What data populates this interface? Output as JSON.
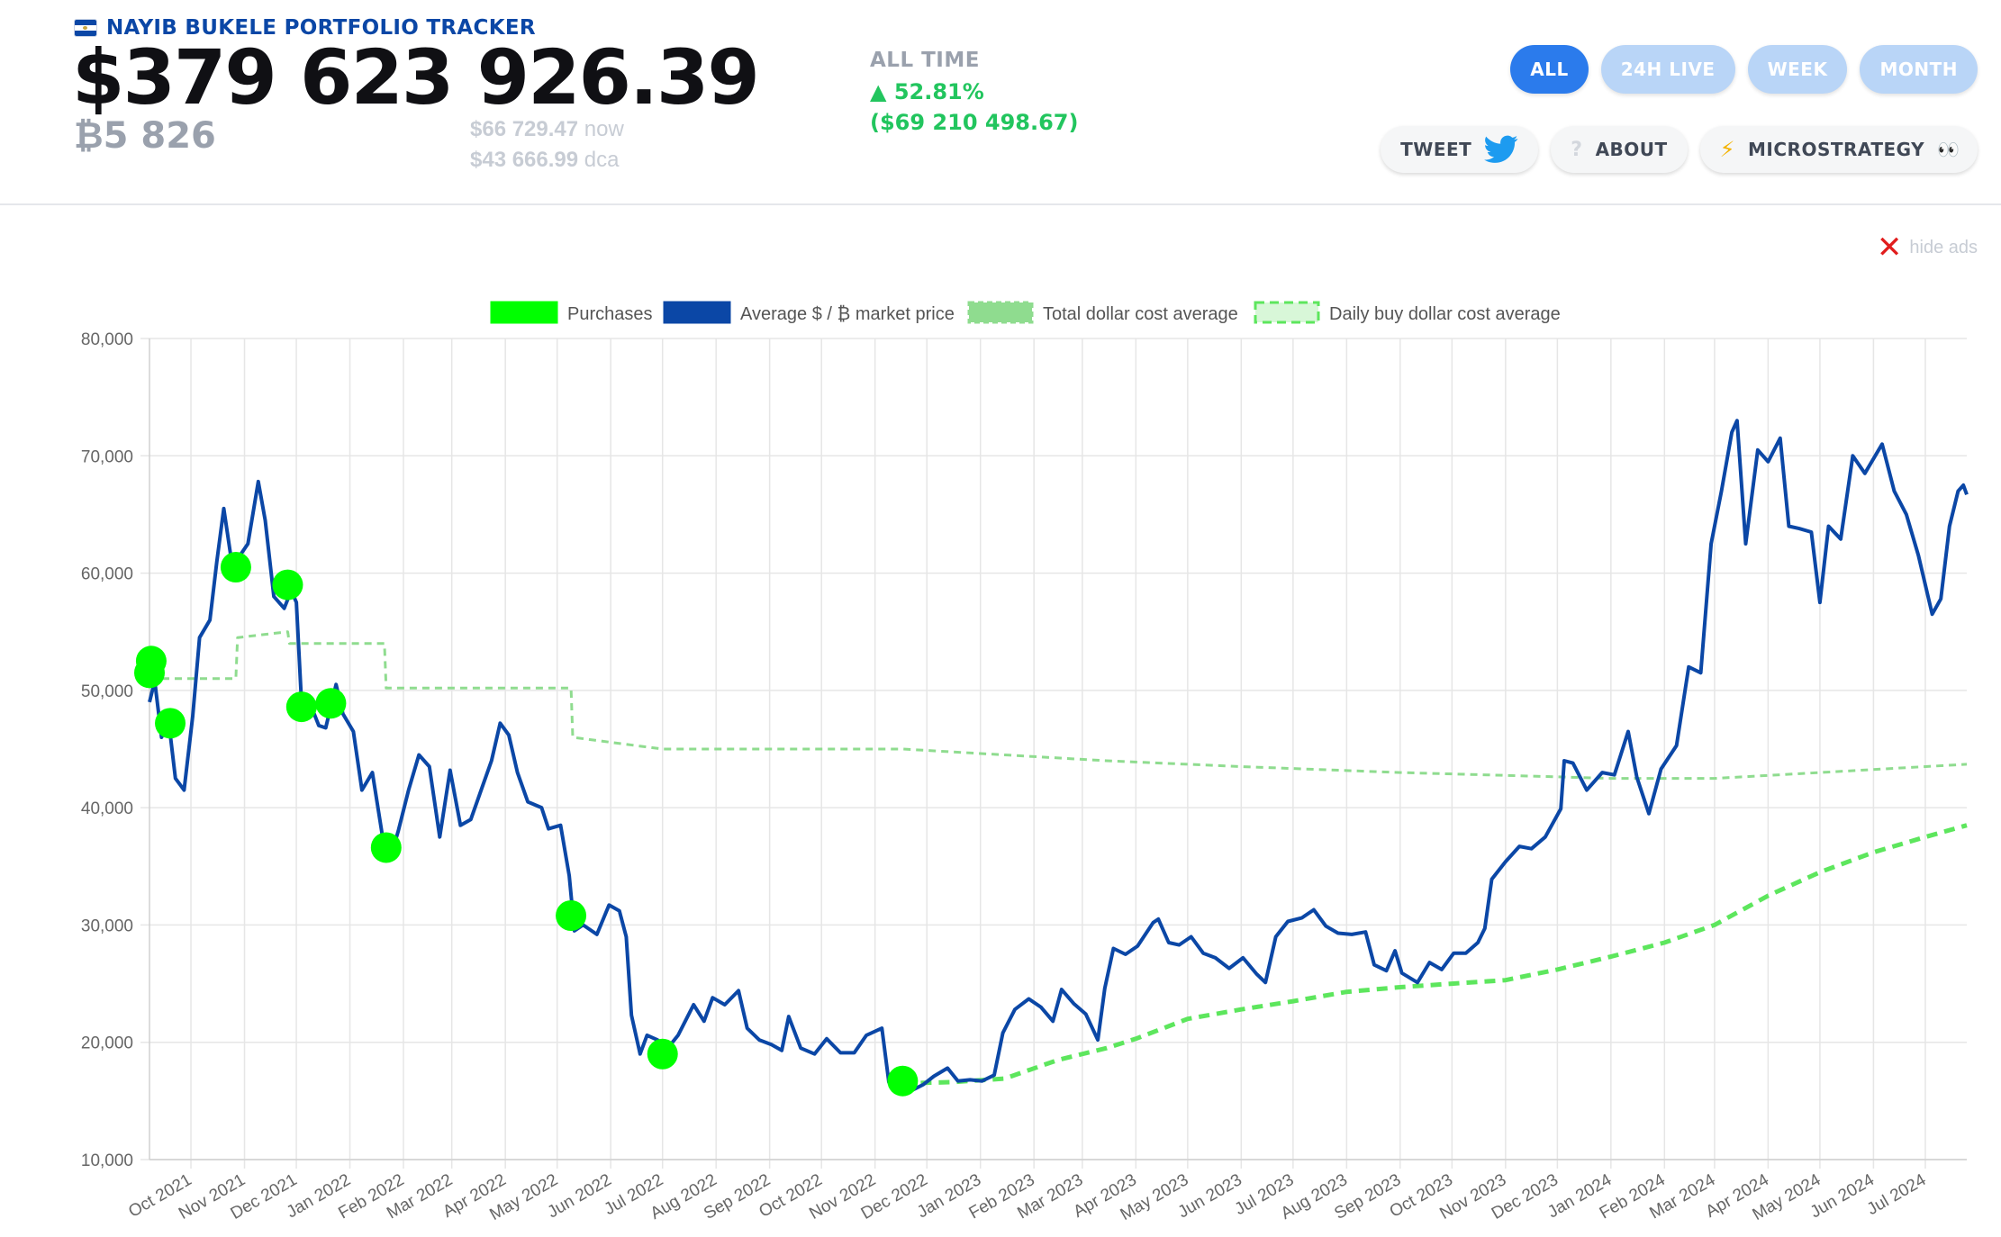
{
  "header": {
    "brand_title": "NAYIB BUKELE PORTFOLIO TRACKER",
    "total_value": "$379 623 926.39",
    "btc_amount": "₿5 826",
    "price_now": "$66 729.47",
    "price_now_label": "now",
    "price_dca": "$43 666.99",
    "price_dca_label": "dca",
    "all_time_label": "ALL TIME",
    "all_time_pct": "▲ 52.81%",
    "all_time_usd": "($69 210 498.67)"
  },
  "ranges": [
    {
      "label": "ALL",
      "active": true
    },
    {
      "label": "24H LIVE",
      "active": false
    },
    {
      "label": "WEEK",
      "active": false
    },
    {
      "label": "MONTH",
      "active": false
    }
  ],
  "actions": {
    "tweet": "TWEET",
    "about": "ABOUT",
    "microstrategy": "MICROSTRATEGY"
  },
  "icons": [
    "el-salvador-flag-icon",
    "twitter-icon",
    "question-icon",
    "lightning-icon",
    "eyes-icon",
    "close-icon"
  ],
  "hide_ads": "hide ads",
  "colors": {
    "brand_blue": "#0b47a6",
    "accent": "#2b7bec",
    "pill_inactive": "#b9d5f7",
    "gain_green": "#22c55e",
    "purchase_green": "#00ff00",
    "dca_green": "#8fdc8f",
    "daily_dca_green": "#5de65d"
  },
  "chart_data": {
    "type": "line",
    "legend": [
      "Purchases",
      "Average $ / ₿ market price",
      "Total dollar cost average",
      "Daily buy dollar cost average"
    ],
    "legend_position": "top",
    "grid": true,
    "y_ticks": [
      10000,
      20000,
      30000,
      40000,
      50000,
      60000,
      70000,
      80000
    ],
    "y_tick_labels": [
      "10,000",
      "20,000",
      "30,000",
      "40,000",
      "50,000",
      "60,000",
      "70,000",
      "80,000"
    ],
    "ylim": [
      10000,
      80000
    ],
    "x_range": [
      "2021-09-07",
      "2024-07-25"
    ],
    "x_ticks": [
      "2021-10-01",
      "2021-11-01",
      "2021-12-01",
      "2022-01-01",
      "2022-02-01",
      "2022-03-01",
      "2022-04-01",
      "2022-05-01",
      "2022-06-01",
      "2022-07-01",
      "2022-08-01",
      "2022-09-01",
      "2022-10-01",
      "2022-11-01",
      "2022-12-01",
      "2023-01-01",
      "2023-02-01",
      "2023-03-01",
      "2023-04-01",
      "2023-05-01",
      "2023-06-01",
      "2023-07-01",
      "2023-08-01",
      "2023-09-01",
      "2023-10-01",
      "2023-11-01",
      "2023-12-01",
      "2024-01-01",
      "2024-02-01",
      "2024-03-01",
      "2024-04-01",
      "2024-05-01",
      "2024-06-01",
      "2024-07-01"
    ],
    "x_tick_labels": [
      "Oct 2021",
      "Nov 2021",
      "Dec 2021",
      "Jan 2022",
      "Feb 2022",
      "Mar 2022",
      "Apr 2022",
      "May 2022",
      "Jun 2022",
      "Jul 2022",
      "Aug 2022",
      "Sep 2022",
      "Oct 2022",
      "Nov 2022",
      "Dec 2022",
      "Jan 2023",
      "Feb 2023",
      "Mar 2023",
      "Apr 2023",
      "May 2023",
      "Jun 2023",
      "Jul 2023",
      "Aug 2023",
      "Sep 2023",
      "Oct 2023",
      "Nov 2023",
      "Dec 2023",
      "Jan 2024",
      "Feb 2024",
      "Mar 2024",
      "Apr 2024",
      "May 2024",
      "Jun 2024",
      "Jul 2024"
    ],
    "series": [
      {
        "name": "Average $ / ₿ market price",
        "style": "solid",
        "color": "#0b47a6",
        "points": [
          [
            "2021-09-07",
            49000
          ],
          [
            "2021-09-10",
            50800
          ],
          [
            "2021-09-14",
            46000
          ],
          [
            "2021-09-18",
            47500
          ],
          [
            "2021-09-22",
            42500
          ],
          [
            "2021-09-27",
            41500
          ],
          [
            "2021-10-02",
            47800
          ],
          [
            "2021-10-06",
            54500
          ],
          [
            "2021-10-12",
            56000
          ],
          [
            "2021-10-16",
            61000
          ],
          [
            "2021-10-20",
            65500
          ],
          [
            "2021-10-24",
            61500
          ],
          [
            "2021-10-28",
            61200
          ],
          [
            "2021-11-03",
            62500
          ],
          [
            "2021-11-09",
            67800
          ],
          [
            "2021-11-13",
            64500
          ],
          [
            "2021-11-18",
            58000
          ],
          [
            "2021-11-24",
            57000
          ],
          [
            "2021-11-28",
            58500
          ],
          [
            "2021-12-01",
            57500
          ],
          [
            "2021-12-04",
            49000
          ],
          [
            "2021-12-10",
            48500
          ],
          [
            "2021-12-14",
            47000
          ],
          [
            "2021-12-18",
            46800
          ],
          [
            "2021-12-24",
            50500
          ],
          [
            "2021-12-28",
            48000
          ],
          [
            "2022-01-03",
            46500
          ],
          [
            "2022-01-08",
            41500
          ],
          [
            "2022-01-14",
            43000
          ],
          [
            "2022-01-21",
            36500
          ],
          [
            "2022-01-24",
            35500
          ],
          [
            "2022-01-29",
            38000
          ],
          [
            "2022-02-04",
            41500
          ],
          [
            "2022-02-10",
            44500
          ],
          [
            "2022-02-16",
            43500
          ],
          [
            "2022-02-22",
            37500
          ],
          [
            "2022-02-28",
            43200
          ],
          [
            "2022-03-06",
            38500
          ],
          [
            "2022-03-12",
            39000
          ],
          [
            "2022-03-18",
            41500
          ],
          [
            "2022-03-24",
            44000
          ],
          [
            "2022-03-29",
            47200
          ],
          [
            "2022-04-03",
            46200
          ],
          [
            "2022-04-08",
            43000
          ],
          [
            "2022-04-14",
            40500
          ],
          [
            "2022-04-22",
            40000
          ],
          [
            "2022-04-26",
            38200
          ],
          [
            "2022-05-03",
            38500
          ],
          [
            "2022-05-08",
            34200
          ],
          [
            "2022-05-11",
            29500
          ],
          [
            "2022-05-16",
            30000
          ],
          [
            "2022-05-24",
            29200
          ],
          [
            "2022-05-31",
            31700
          ],
          [
            "2022-06-06",
            31200
          ],
          [
            "2022-06-10",
            29000
          ],
          [
            "2022-06-13",
            22300
          ],
          [
            "2022-06-18",
            19000
          ],
          [
            "2022-06-22",
            20600
          ],
          [
            "2022-06-28",
            20200
          ],
          [
            "2022-07-04",
            19500
          ],
          [
            "2022-07-10",
            20600
          ],
          [
            "2022-07-19",
            23200
          ],
          [
            "2022-07-25",
            21800
          ],
          [
            "2022-07-30",
            23800
          ],
          [
            "2022-08-06",
            23200
          ],
          [
            "2022-08-14",
            24400
          ],
          [
            "2022-08-19",
            21200
          ],
          [
            "2022-08-26",
            20200
          ],
          [
            "2022-09-02",
            19800
          ],
          [
            "2022-09-08",
            19300
          ],
          [
            "2022-09-12",
            22200
          ],
          [
            "2022-09-19",
            19500
          ],
          [
            "2022-09-27",
            19000
          ],
          [
            "2022-10-04",
            20300
          ],
          [
            "2022-10-12",
            19100
          ],
          [
            "2022-10-20",
            19100
          ],
          [
            "2022-10-27",
            20600
          ],
          [
            "2022-11-05",
            21200
          ],
          [
            "2022-11-09",
            16600
          ],
          [
            "2022-11-14",
            16400
          ],
          [
            "2022-11-21",
            15800
          ],
          [
            "2022-11-29",
            16400
          ],
          [
            "2022-12-05",
            17100
          ],
          [
            "2022-12-13",
            17800
          ],
          [
            "2022-12-19",
            16700
          ],
          [
            "2022-12-26",
            16800
          ],
          [
            "2023-01-02",
            16700
          ],
          [
            "2023-01-09",
            17200
          ],
          [
            "2023-01-14",
            20800
          ],
          [
            "2023-01-21",
            22800
          ],
          [
            "2023-01-29",
            23700
          ],
          [
            "2023-02-05",
            23000
          ],
          [
            "2023-02-12",
            21800
          ],
          [
            "2023-02-17",
            24500
          ],
          [
            "2023-02-24",
            23300
          ],
          [
            "2023-03-03",
            22400
          ],
          [
            "2023-03-10",
            20200
          ],
          [
            "2023-03-14",
            24600
          ],
          [
            "2023-03-19",
            28000
          ],
          [
            "2023-03-26",
            27500
          ],
          [
            "2023-04-02",
            28200
          ],
          [
            "2023-04-11",
            30200
          ],
          [
            "2023-04-14",
            30500
          ],
          [
            "2023-04-20",
            28500
          ],
          [
            "2023-04-26",
            28300
          ],
          [
            "2023-05-03",
            29000
          ],
          [
            "2023-05-10",
            27600
          ],
          [
            "2023-05-17",
            27200
          ],
          [
            "2023-05-25",
            26300
          ],
          [
            "2023-06-02",
            27200
          ],
          [
            "2023-06-10",
            25800
          ],
          [
            "2023-06-15",
            25100
          ],
          [
            "2023-06-21",
            29000
          ],
          [
            "2023-06-28",
            30300
          ],
          [
            "2023-07-06",
            30600
          ],
          [
            "2023-07-13",
            31300
          ],
          [
            "2023-07-20",
            29900
          ],
          [
            "2023-07-27",
            29300
          ],
          [
            "2023-08-04",
            29200
          ],
          [
            "2023-08-12",
            29400
          ],
          [
            "2023-08-17",
            26600
          ],
          [
            "2023-08-24",
            26100
          ],
          [
            "2023-08-29",
            27800
          ],
          [
            "2023-09-02",
            25900
          ],
          [
            "2023-09-11",
            25100
          ],
          [
            "2023-09-18",
            26800
          ],
          [
            "2023-09-25",
            26200
          ],
          [
            "2023-10-02",
            27600
          ],
          [
            "2023-10-09",
            27600
          ],
          [
            "2023-10-16",
            28500
          ],
          [
            "2023-10-20",
            29700
          ],
          [
            "2023-10-24",
            33900
          ],
          [
            "2023-11-01",
            35400
          ],
          [
            "2023-11-09",
            36700
          ],
          [
            "2023-11-16",
            36500
          ],
          [
            "2023-11-24",
            37500
          ],
          [
            "2023-12-03",
            39900
          ],
          [
            "2023-12-05",
            44000
          ],
          [
            "2023-12-10",
            43800
          ],
          [
            "2023-12-18",
            41500
          ],
          [
            "2023-12-27",
            43000
          ],
          [
            "2024-01-03",
            42800
          ],
          [
            "2024-01-11",
            46500
          ],
          [
            "2024-01-16",
            42600
          ],
          [
            "2024-01-23",
            39500
          ],
          [
            "2024-01-30",
            43300
          ],
          [
            "2024-02-08",
            45300
          ],
          [
            "2024-02-15",
            52000
          ],
          [
            "2024-02-22",
            51500
          ],
          [
            "2024-02-28",
            62500
          ],
          [
            "2024-03-05",
            67000
          ],
          [
            "2024-03-11",
            72000
          ],
          [
            "2024-03-14",
            73000
          ],
          [
            "2024-03-19",
            62500
          ],
          [
            "2024-03-26",
            70500
          ],
          [
            "2024-04-01",
            69500
          ],
          [
            "2024-04-08",
            71500
          ],
          [
            "2024-04-13",
            64000
          ],
          [
            "2024-04-19",
            63800
          ],
          [
            "2024-04-26",
            63500
          ],
          [
            "2024-05-01",
            57500
          ],
          [
            "2024-05-06",
            64000
          ],
          [
            "2024-05-13",
            62900
          ],
          [
            "2024-05-20",
            70000
          ],
          [
            "2024-05-27",
            68500
          ],
          [
            "2024-06-06",
            71000
          ],
          [
            "2024-06-13",
            67000
          ],
          [
            "2024-06-20",
            65000
          ],
          [
            "2024-06-27",
            61500
          ],
          [
            "2024-07-05",
            56500
          ],
          [
            "2024-07-10",
            57800
          ],
          [
            "2024-07-15",
            64000
          ],
          [
            "2024-07-20",
            67000
          ],
          [
            "2024-07-23",
            67500
          ],
          [
            "2024-07-25",
            66700
          ]
        ]
      },
      {
        "name": "Total dollar cost average",
        "style": "dashed",
        "color": "#8fdc8f",
        "points": [
          [
            "2021-09-07",
            51000
          ],
          [
            "2021-10-27",
            51000
          ],
          [
            "2021-10-28",
            54500
          ],
          [
            "2021-11-26",
            55000
          ],
          [
            "2021-11-27",
            54000
          ],
          [
            "2022-01-21",
            54000
          ],
          [
            "2022-01-22",
            50200
          ],
          [
            "2022-05-09",
            50200
          ],
          [
            "2022-05-10",
            46000
          ],
          [
            "2022-07-01",
            45000
          ],
          [
            "2022-11-17",
            45000
          ],
          [
            "2023-01-15",
            44500
          ],
          [
            "2023-03-15",
            44000
          ],
          [
            "2023-06-01",
            43500
          ],
          [
            "2023-09-01",
            43000
          ],
          [
            "2023-11-15",
            42700
          ],
          [
            "2024-01-01",
            42500
          ],
          [
            "2024-03-01",
            42500
          ],
          [
            "2024-05-01",
            43000
          ],
          [
            "2024-07-25",
            43700
          ]
        ]
      },
      {
        "name": "Daily buy dollar cost average",
        "style": "dashed",
        "color": "#5de65d",
        "points": [
          [
            "2022-11-17",
            16500
          ],
          [
            "2022-12-15",
            16600
          ],
          [
            "2023-01-15",
            16900
          ],
          [
            "2023-02-15",
            18500
          ],
          [
            "2023-03-15",
            19500
          ],
          [
            "2023-04-01",
            20300
          ],
          [
            "2023-05-01",
            22000
          ],
          [
            "2023-06-01",
            22800
          ],
          [
            "2023-07-01",
            23500
          ],
          [
            "2023-08-01",
            24300
          ],
          [
            "2023-09-01",
            24700
          ],
          [
            "2023-10-01",
            25000
          ],
          [
            "2023-11-01",
            25300
          ],
          [
            "2023-12-01",
            26200
          ],
          [
            "2024-01-01",
            27300
          ],
          [
            "2024-02-01",
            28500
          ],
          [
            "2024-03-01",
            30000
          ],
          [
            "2024-04-01",
            32500
          ],
          [
            "2024-05-01",
            34500
          ],
          [
            "2024-06-01",
            36200
          ],
          [
            "2024-07-01",
            37500
          ],
          [
            "2024-07-25",
            38500
          ]
        ]
      }
    ],
    "purchases": [
      [
        "2021-09-07",
        51500
      ],
      [
        "2021-09-08",
        52500
      ],
      [
        "2021-09-19",
        47200
      ],
      [
        "2021-10-27",
        60500
      ],
      [
        "2021-11-26",
        59000
      ],
      [
        "2021-12-04",
        48600
      ],
      [
        "2021-12-21",
        48900
      ],
      [
        "2022-01-22",
        36600
      ],
      [
        "2022-05-09",
        30800
      ],
      [
        "2022-07-01",
        19000
      ],
      [
        "2022-11-17",
        16700
      ]
    ]
  }
}
